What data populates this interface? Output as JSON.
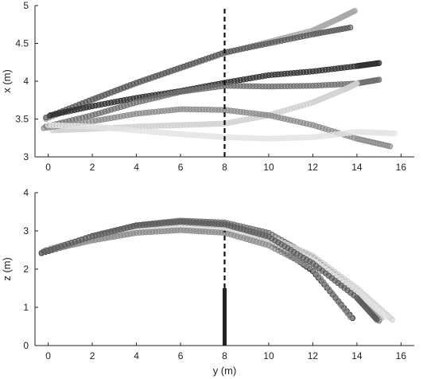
{
  "chart_data": [
    {
      "type": "scatter",
      "panel": "top",
      "xlabel": "",
      "ylabel": "x (m)",
      "xlim": [
        -0.6,
        16.6
      ],
      "ylim": [
        3,
        5
      ],
      "xticks": [
        0,
        2,
        4,
        6,
        8,
        10,
        12,
        14,
        16
      ],
      "yticks": [
        3,
        3.5,
        4,
        4.5,
        5
      ],
      "ytick_labels": [
        "3",
        "3.5",
        "4",
        "4.5",
        "5"
      ],
      "vline": {
        "x": 8,
        "style": "dashed"
      },
      "series": [
        {
          "color": "#a8a8a8",
          "points": [
            [
              -0.1,
              3.5
            ],
            [
              2,
              3.75
            ],
            [
              4,
              3.97
            ],
            [
              6,
              4.17
            ],
            [
              8,
              4.37
            ],
            [
              10,
              4.52
            ],
            [
              12,
              4.67
            ],
            [
              13.2,
              4.83
            ],
            [
              13.9,
              4.93
            ]
          ]
        },
        {
          "color": "#595959",
          "points": [
            [
              -0.1,
              3.52
            ],
            [
              2,
              3.76
            ],
            [
              4,
              3.98
            ],
            [
              6,
              4.18
            ],
            [
              8,
              4.38
            ],
            [
              10,
              4.5
            ],
            [
              12,
              4.62
            ],
            [
              13.7,
              4.71
            ]
          ]
        },
        {
          "color": "#2e2e2e",
          "points": [
            [
              0.1,
              3.55
            ],
            [
              2,
              3.67
            ],
            [
              4,
              3.78
            ],
            [
              6,
              3.87
            ],
            [
              8,
              3.98
            ],
            [
              10,
              4.08
            ],
            [
              12,
              4.13
            ],
            [
              14,
              4.2
            ],
            [
              15,
              4.24
            ]
          ]
        },
        {
          "color": "#6e6e6e",
          "points": [
            [
              -0.1,
              3.4
            ],
            [
              2,
              3.55
            ],
            [
              4,
              3.72
            ],
            [
              6,
              3.86
            ],
            [
              8,
              3.94
            ],
            [
              10,
              3.93
            ],
            [
              12,
              3.94
            ],
            [
              14,
              3.97
            ],
            [
              15,
              4.02
            ]
          ]
        },
        {
          "color": "#cfcfcf",
          "points": [
            [
              0.2,
              3.35
            ],
            [
              2,
              3.37
            ],
            [
              4,
              3.4
            ],
            [
              6,
              3.42
            ],
            [
              8,
              3.44
            ],
            [
              10,
              3.55
            ],
            [
              12,
              3.72
            ],
            [
              13.5,
              3.9
            ],
            [
              14,
              3.97
            ]
          ]
        },
        {
          "color": "#8a8a8a",
          "points": [
            [
              -0.2,
              3.38
            ],
            [
              2,
              3.47
            ],
            [
              4,
              3.57
            ],
            [
              6,
              3.63
            ],
            [
              8,
              3.62
            ],
            [
              10,
              3.55
            ],
            [
              12,
              3.42
            ],
            [
              14,
              3.24
            ],
            [
              15.5,
              3.14
            ]
          ]
        },
        {
          "color": "#e3e3e3",
          "points": [
            [
              0,
              3.42
            ],
            [
              2,
              3.4
            ],
            [
              4,
              3.35
            ],
            [
              6,
              3.3
            ],
            [
              8,
              3.26
            ],
            [
              10,
              3.24
            ],
            [
              12,
              3.26
            ],
            [
              14,
              3.33
            ],
            [
              15.7,
              3.31
            ]
          ]
        }
      ]
    },
    {
      "type": "scatter",
      "panel": "bottom",
      "xlabel": "y (m)",
      "ylabel": "z (m)",
      "xlim": [
        -0.6,
        16.6
      ],
      "ylim": [
        0,
        4
      ],
      "xticks": [
        0,
        2,
        4,
        6,
        8,
        10,
        12,
        14,
        16
      ],
      "yticks": [
        0,
        1,
        2,
        3,
        4
      ],
      "ytick_labels": [
        "0",
        "1",
        "2",
        "3",
        "4"
      ],
      "vline": {
        "x": 8,
        "style": "dashed",
        "y0": 1.5,
        "y1": 3
      },
      "pole": {
        "x": 8,
        "y0": 0,
        "y1": 1.5
      },
      "series": [
        {
          "color": "#2e2e2e",
          "points": [
            [
              -0.3,
              2.42
            ],
            [
              2,
              2.8
            ],
            [
              4,
              3.1
            ],
            [
              6,
              3.22
            ],
            [
              8,
              3.12
            ],
            [
              10,
              2.75
            ],
            [
              12,
              1.95
            ],
            [
              13.8,
              0.72
            ]
          ]
        },
        {
          "color": "#6e6e6e",
          "points": [
            [
              -0.2,
              2.45
            ],
            [
              2,
              2.87
            ],
            [
              4,
              3.15
            ],
            [
              6,
              3.27
            ],
            [
              8,
              3.22
            ],
            [
              10,
              2.95
            ],
            [
              12,
              2.3
            ],
            [
              14,
              1.42
            ],
            [
              15,
              0.65
            ]
          ]
        },
        {
          "color": "#a8a8a8",
          "points": [
            [
              -0.1,
              2.5
            ],
            [
              2,
              2.85
            ],
            [
              4,
              3.1
            ],
            [
              6,
              3.22
            ],
            [
              8,
              3.15
            ],
            [
              10,
              2.85
            ],
            [
              12,
              2.2
            ],
            [
              14.2,
              1.2
            ],
            [
              15.1,
              0.72
            ]
          ]
        },
        {
          "color": "#cfcfcf",
          "points": [
            [
              0.1,
              2.55
            ],
            [
              2,
              2.82
            ],
            [
              4,
              3.03
            ],
            [
              6,
              3.12
            ],
            [
              8,
              3.07
            ],
            [
              10,
              2.85
            ],
            [
              12,
              2.35
            ],
            [
              14,
              1.5
            ],
            [
              15.6,
              0.68
            ]
          ]
        },
        {
          "color": "#e3e3e3",
          "points": [
            [
              0,
              2.52
            ],
            [
              2,
              2.78
            ],
            [
              4,
              2.98
            ],
            [
              6,
              3.06
            ],
            [
              8,
              3.0
            ],
            [
              10,
              2.74
            ],
            [
              12,
              2.23
            ],
            [
              14,
              1.42
            ],
            [
              15.3,
              0.75
            ]
          ]
        },
        {
          "color": "#8a8a8a",
          "points": [
            [
              -0.1,
              2.48
            ],
            [
              2,
              2.75
            ],
            [
              4,
              2.95
            ],
            [
              6,
              3.02
            ],
            [
              8,
              2.95
            ],
            [
              10,
              2.62
            ],
            [
              12,
              2.02
            ],
            [
              13.7,
              0.75
            ]
          ]
        },
        {
          "color": "#595959",
          "points": [
            [
              -0.2,
              2.46
            ],
            [
              2,
              2.86
            ],
            [
              4,
              3.14
            ],
            [
              6,
              3.24
            ],
            [
              8,
              3.17
            ],
            [
              10,
              2.85
            ],
            [
              12,
              2.15
            ],
            [
              14,
              1.25
            ],
            [
              14.9,
              0.68
            ]
          ]
        }
      ]
    }
  ]
}
